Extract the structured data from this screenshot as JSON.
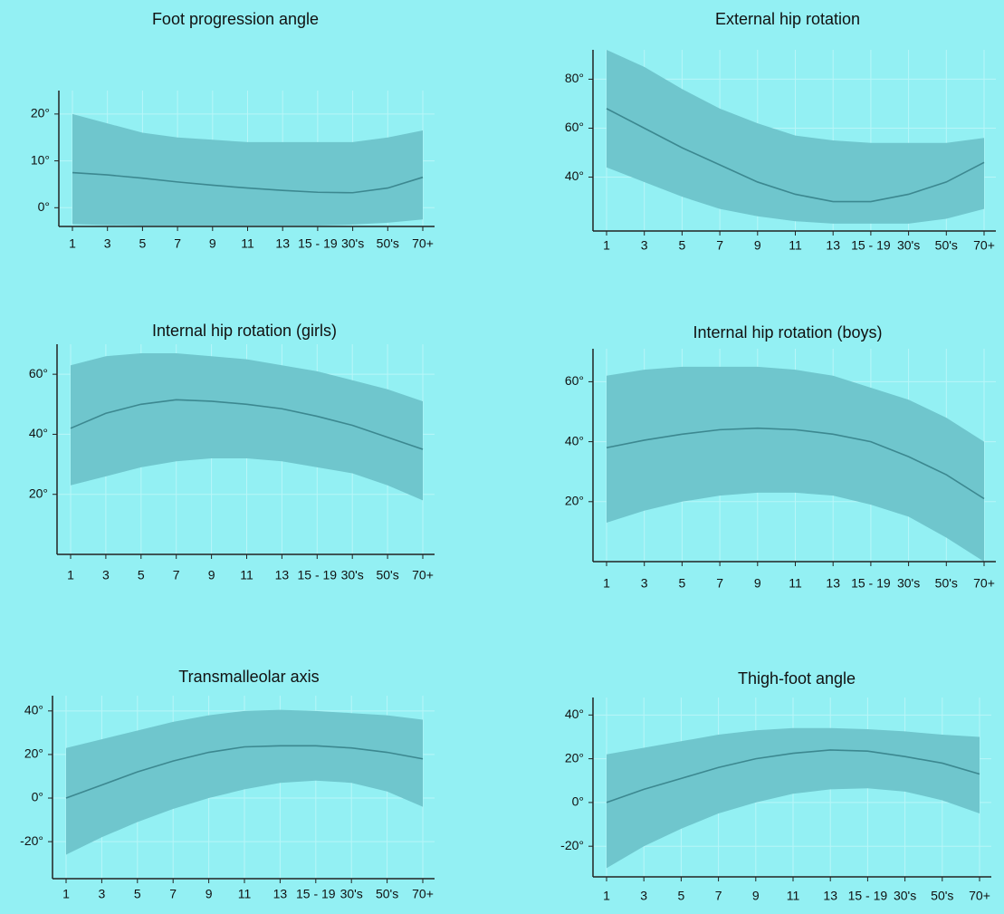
{
  "chart_data": [
    {
      "type": "band",
      "title": "Foot progression angle",
      "categories": [
        "1",
        "3",
        "5",
        "7",
        "9",
        "11",
        "13",
        "15 - 19",
        "30's",
        "50's",
        "70+"
      ],
      "values": [
        7.5,
        7,
        6.3,
        5.5,
        4.8,
        4.2,
        3.7,
        3.3,
        3.2,
        4.2,
        6.5
      ],
      "upper": [
        20,
        18,
        16,
        15,
        14.5,
        14,
        14,
        14,
        14,
        15,
        16.5
      ],
      "lower": [
        -3.5,
        -3.7,
        -3.8,
        -3.8,
        -3.8,
        -3.8,
        -3.8,
        -3.8,
        -3.6,
        -3.2,
        -2.5
      ],
      "ylim": [
        -4,
        25
      ],
      "yticks": [
        {
          "value": 0,
          "label": "0°"
        },
        {
          "value": 10,
          "label": "10°"
        },
        {
          "value": 20,
          "label": "20°"
        }
      ],
      "band_color": "#6fc6cd",
      "line_color": "#3c8890",
      "grid": true
    },
    {
      "type": "band",
      "title": "External hip rotation",
      "categories": [
        "1",
        "3",
        "5",
        "7",
        "9",
        "11",
        "13",
        "15 - 19",
        "30's",
        "50's",
        "70+"
      ],
      "values": [
        68,
        60,
        52,
        45,
        38,
        33,
        30,
        30,
        33,
        38,
        46
      ],
      "upper": [
        92,
        85,
        76,
        68,
        62,
        57,
        55,
        54,
        54,
        54,
        56
      ],
      "lower": [
        44,
        38,
        32,
        27,
        24,
        22,
        21,
        21,
        21,
        23,
        27
      ],
      "ylim": [
        18,
        92
      ],
      "yticks": [
        {
          "value": 40,
          "label": "40°"
        },
        {
          "value": 60,
          "label": "60°"
        },
        {
          "value": 80,
          "label": "80°"
        }
      ],
      "band_color": "#6fc6cd",
      "line_color": "#3c8890",
      "grid": true
    },
    {
      "type": "band",
      "title": "Internal hip rotation (girls)",
      "categories": [
        "1",
        "3",
        "5",
        "7",
        "9",
        "11",
        "13",
        "15 - 19",
        "30's",
        "50's",
        "70+"
      ],
      "values": [
        42,
        47,
        50,
        51.5,
        51,
        50,
        48.5,
        46,
        43,
        39,
        35
      ],
      "upper": [
        63,
        66,
        67,
        67,
        66,
        65,
        63,
        61,
        58,
        55,
        51
      ],
      "lower": [
        23,
        26,
        29,
        31,
        32,
        32,
        31,
        29,
        27,
        23,
        18
      ],
      "ylim": [
        0,
        70
      ],
      "yticks": [
        {
          "value": 20,
          "label": "20°"
        },
        {
          "value": 40,
          "label": "40°"
        },
        {
          "value": 60,
          "label": "60°"
        }
      ],
      "band_color": "#6fc6cd",
      "line_color": "#3c8890",
      "grid": true
    },
    {
      "type": "band",
      "title": "Internal hip rotation (boys)",
      "categories": [
        "1",
        "3",
        "5",
        "7",
        "9",
        "11",
        "13",
        "15 - 19",
        "30's",
        "50's",
        "70+"
      ],
      "values": [
        38,
        40.5,
        42.5,
        44,
        44.5,
        44,
        42.5,
        40,
        35,
        29,
        21
      ],
      "upper": [
        62,
        64,
        65,
        65,
        65,
        64,
        62,
        58,
        54,
        48,
        40
      ],
      "lower": [
        13,
        17,
        20,
        22,
        23,
        23,
        22,
        19,
        15,
        8,
        0
      ],
      "ylim": [
        0,
        71
      ],
      "yticks": [
        {
          "value": 20,
          "label": "20°"
        },
        {
          "value": 40,
          "label": "40°"
        },
        {
          "value": 60,
          "label": "60°"
        }
      ],
      "band_color": "#6fc6cd",
      "line_color": "#3c8890",
      "grid": true
    },
    {
      "type": "band",
      "title": "Transmalleolar axis",
      "categories": [
        "1",
        "3",
        "5",
        "7",
        "9",
        "11",
        "13",
        "15 - 19",
        "30's",
        "50's",
        "70+"
      ],
      "values": [
        0,
        6,
        12,
        17,
        21,
        23.5,
        24,
        24,
        23,
        21,
        18
      ],
      "upper": [
        23,
        27,
        31,
        35,
        38,
        40,
        40.5,
        40,
        39,
        38,
        36
      ],
      "lower": [
        -26,
        -18,
        -11,
        -5,
        0,
        4,
        7,
        8,
        7,
        3,
        -4
      ],
      "ylim": [
        -37,
        47
      ],
      "yticks": [
        {
          "value": -20,
          "label": "-20°"
        },
        {
          "value": 0,
          "label": "0°"
        },
        {
          "value": 20,
          "label": "20°"
        },
        {
          "value": 40,
          "label": "40°"
        }
      ],
      "band_color": "#6fc6cd",
      "line_color": "#3c8890",
      "grid": true
    },
    {
      "type": "band",
      "title": "Thigh-foot angle",
      "categories": [
        "1",
        "3",
        "5",
        "7",
        "9",
        "11",
        "13",
        "15 - 19",
        "30's",
        "50's",
        "70+"
      ],
      "values": [
        0,
        6,
        11,
        16,
        20,
        22.5,
        24,
        23.5,
        21,
        18,
        13
      ],
      "upper": [
        22,
        25,
        28,
        31,
        33,
        34,
        34,
        33.5,
        32.5,
        31,
        30
      ],
      "lower": [
        -30,
        -20,
        -12,
        -5,
        0,
        4,
        6,
        6.5,
        5,
        1,
        -5
      ],
      "ylim": [
        -34,
        48
      ],
      "yticks": [
        {
          "value": -20,
          "label": "-20°"
        },
        {
          "value": 0,
          "label": "0°"
        },
        {
          "value": 20,
          "label": "20°"
        },
        {
          "value": 40,
          "label": "40°"
        }
      ],
      "band_color": "#6fc6cd",
      "line_color": "#3c8890",
      "grid": true
    }
  ]
}
